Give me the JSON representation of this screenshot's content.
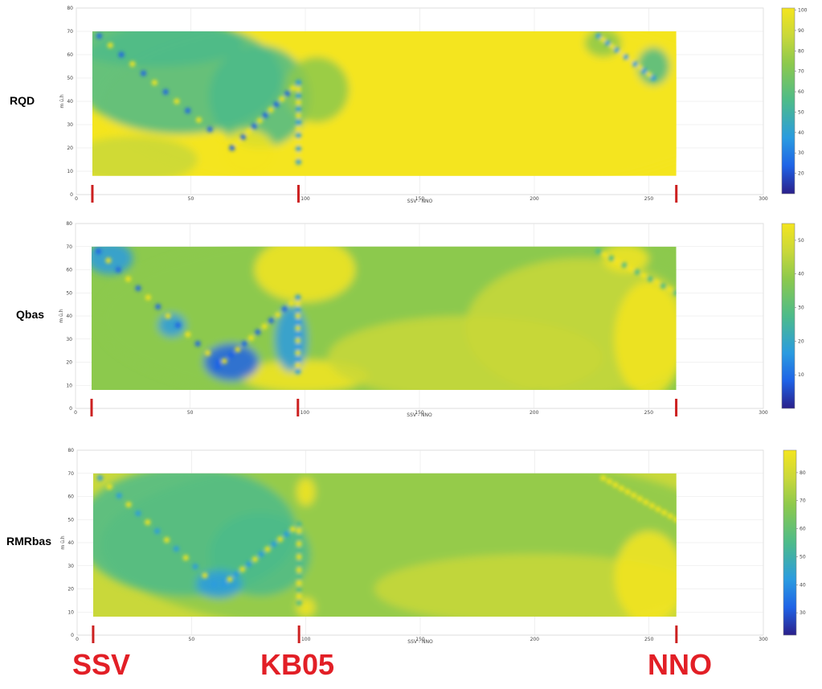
{
  "panels": [
    {
      "label": "RQD",
      "colorbar": {
        "min": 10,
        "max": 101,
        "ticks": [
          20,
          30,
          40,
          50,
          60,
          70,
          80,
          90,
          100
        ]
      }
    },
    {
      "label": "Qbas",
      "colorbar": {
        "min": 0,
        "max": 55,
        "ticks": [
          10,
          20,
          30,
          40,
          50
        ]
      }
    },
    {
      "label": "RMRbas",
      "colorbar": {
        "min": 22,
        "max": 88,
        "ticks": [
          30,
          40,
          50,
          60,
          70,
          80
        ]
      }
    }
  ],
  "bottom_labels": {
    "ssv": "SSV",
    "kb05": "KB05",
    "nno": "NNO"
  },
  "chart_data": [
    {
      "type": "heatmap",
      "title": "RQD",
      "xlabel": "SSV - NNO",
      "ylabel": "m ü.h",
      "xlim": [
        0,
        300
      ],
      "ylim": [
        0,
        80
      ],
      "xticks": [
        0,
        50,
        100,
        150,
        200,
        250,
        300
      ],
      "yticks": [
        0,
        10,
        20,
        30,
        40,
        50,
        60,
        70,
        80
      ],
      "data_extent": {
        "x": [
          7,
          262
        ],
        "y": [
          8,
          70
        ]
      },
      "boreholes_x": [
        7,
        97,
        262
      ],
      "colormap": "parula",
      "grid": true
    },
    {
      "type": "heatmap",
      "title": "Qbas",
      "xlabel": "SSV - NNO",
      "ylabel": "m ü.h",
      "xlim": [
        0,
        300
      ],
      "ylim": [
        0,
        80
      ],
      "xticks": [
        0,
        50,
        100,
        150,
        200,
        250,
        300
      ],
      "yticks": [
        0,
        10,
        20,
        30,
        40,
        50,
        60,
        70,
        80
      ],
      "data_extent": {
        "x": [
          7,
          262
        ],
        "y": [
          8,
          70
        ]
      },
      "boreholes_x": [
        7,
        97,
        262
      ],
      "colormap": "parula",
      "grid": true
    },
    {
      "type": "heatmap",
      "title": "RMRbas",
      "xlabel": "SSV - NNO",
      "ylabel": "m ü.h",
      "xlim": [
        0,
        300
      ],
      "ylim": [
        0,
        80
      ],
      "xticks": [
        0,
        50,
        100,
        150,
        200,
        250,
        300
      ],
      "yticks": [
        0,
        10,
        20,
        30,
        40,
        50,
        60,
        70,
        80
      ],
      "data_extent": {
        "x": [
          7,
          262
        ],
        "y": [
          8,
          70
        ]
      },
      "boreholes_x": [
        7,
        97,
        262
      ],
      "colormap": "parula",
      "grid": true
    }
  ],
  "colors": {
    "yellow": "#f4e51e",
    "yellow_green": "#c9d83a",
    "green": "#8cc94d",
    "teal": "#4dbb8a",
    "cyan_blue": "#2a9be0",
    "blue": "#1f63e6",
    "dark_blue": "#2a1f8a",
    "marker_red": "#cc2020",
    "grid": "#e6e6e6"
  }
}
